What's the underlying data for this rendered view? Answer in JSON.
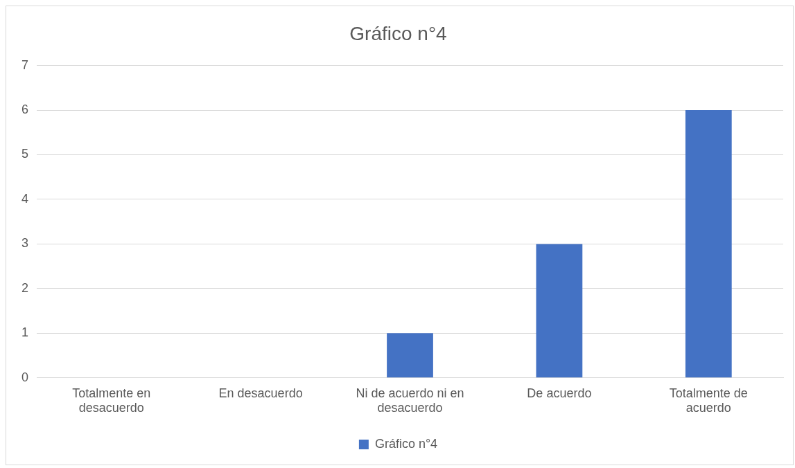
{
  "chart_data": {
    "type": "bar",
    "title": "Gráfico n°4",
    "categories": [
      "Totalmente en desacuerdo",
      "En desacuerdo",
      "Ni de acuerdo ni en desacuerdo",
      "De acuerdo",
      "Totalmente de acuerdo"
    ],
    "series": [
      {
        "name": "Gráfico n°4",
        "color": "#4472c4",
        "values": [
          0,
          0,
          1,
          3,
          6
        ]
      }
    ],
    "ylim": [
      0,
      7
    ],
    "yticks": [
      0,
      1,
      2,
      3,
      4,
      5,
      6,
      7
    ],
    "grid": "y",
    "legend": "bottom"
  }
}
